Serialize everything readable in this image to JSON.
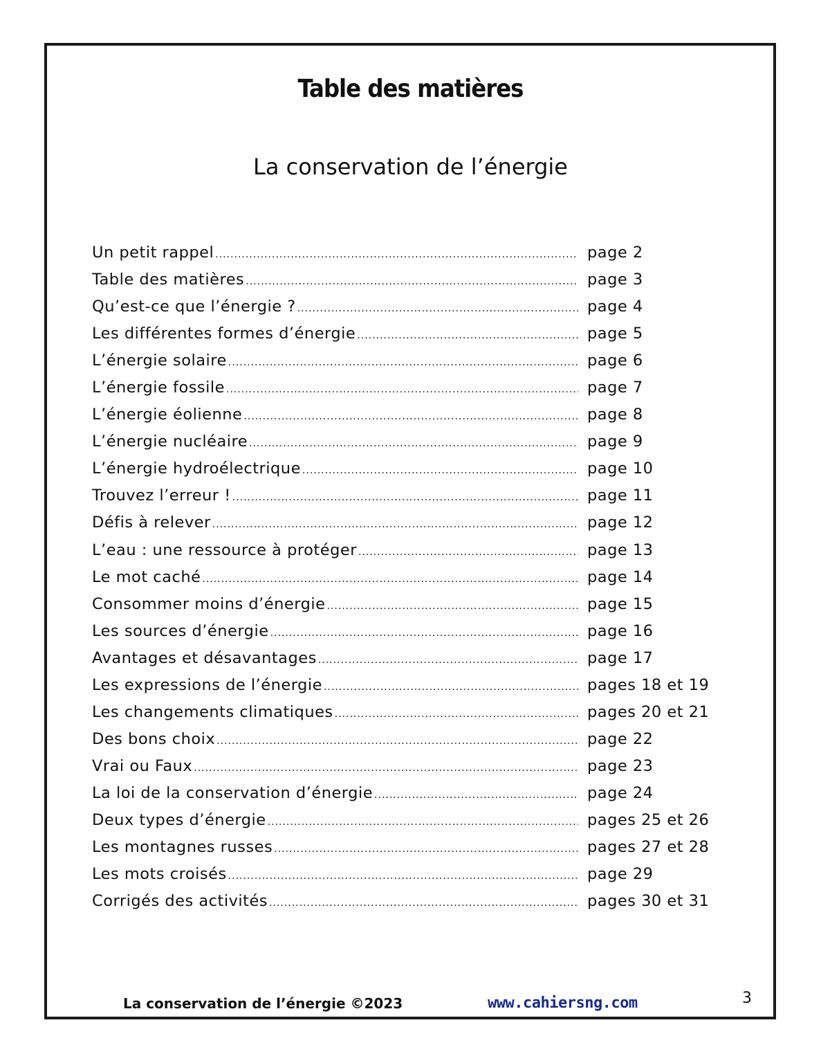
{
  "title": "Table des matières",
  "subtitle": "La conservation de l’énergie",
  "entries": [
    {
      "label": "Un petit rappel",
      "page": "page 2"
    },
    {
      "label": "Table des matières",
      "page": "page 3"
    },
    {
      "label": "Qu’est-ce que l’énergie ?",
      "page": "page 4"
    },
    {
      "label": "Les différentes formes d’énergie",
      "page": "page 5"
    },
    {
      "label": "L’énergie solaire",
      "page": "page 6"
    },
    {
      "label": "L’énergie fossile",
      "page": "page 7"
    },
    {
      "label": "L’énergie éolienne",
      "page": "page 8"
    },
    {
      "label": "L’énergie nucléaire",
      "page": "page 9"
    },
    {
      "label": "L’énergie hydroélectrique",
      "page": "page 10"
    },
    {
      "label": "Trouvez l’erreur !",
      "page": "page 11"
    },
    {
      "label": "Défis à relever",
      "page": "page 12"
    },
    {
      "label": "L’eau : une ressource à protéger",
      "page": "page 13"
    },
    {
      "label": "Le mot caché",
      "page": "page 14"
    },
    {
      "label": "Consommer moins d’énergie",
      "page": "page 15"
    },
    {
      "label": "Les sources d’énergie",
      "page": "page 16"
    },
    {
      "label": "Avantages et désavantages",
      "page": "page 17"
    },
    {
      "label": "Les expressions de l’énergie",
      "page": "pages 18 et 19"
    },
    {
      "label": "Les changements climatiques",
      "page": "pages 20 et 21"
    },
    {
      "label": "Des bons choix",
      "page": "page 22"
    },
    {
      "label": "Vrai ou Faux",
      "page": "page 23"
    },
    {
      "label": "La loi de la conservation d’énergie",
      "page": "page 24"
    },
    {
      "label": "Deux types d’énergie",
      "page": "pages 25 et 26"
    },
    {
      "label": "Les montagnes russes",
      "page": "pages 27 et 28"
    },
    {
      "label": "Les mots croisés",
      "page": "page 29"
    },
    {
      "label": "Corrigés des activités",
      "page": "pages 30 et 31"
    }
  ],
  "footer": {
    "left": "La conservation de l’énergie ©2023",
    "url": "www.cahiersng.com",
    "page_number": "3"
  },
  "colors": {
    "url": "#1a2a8c",
    "border": "#1a1a1a"
  }
}
